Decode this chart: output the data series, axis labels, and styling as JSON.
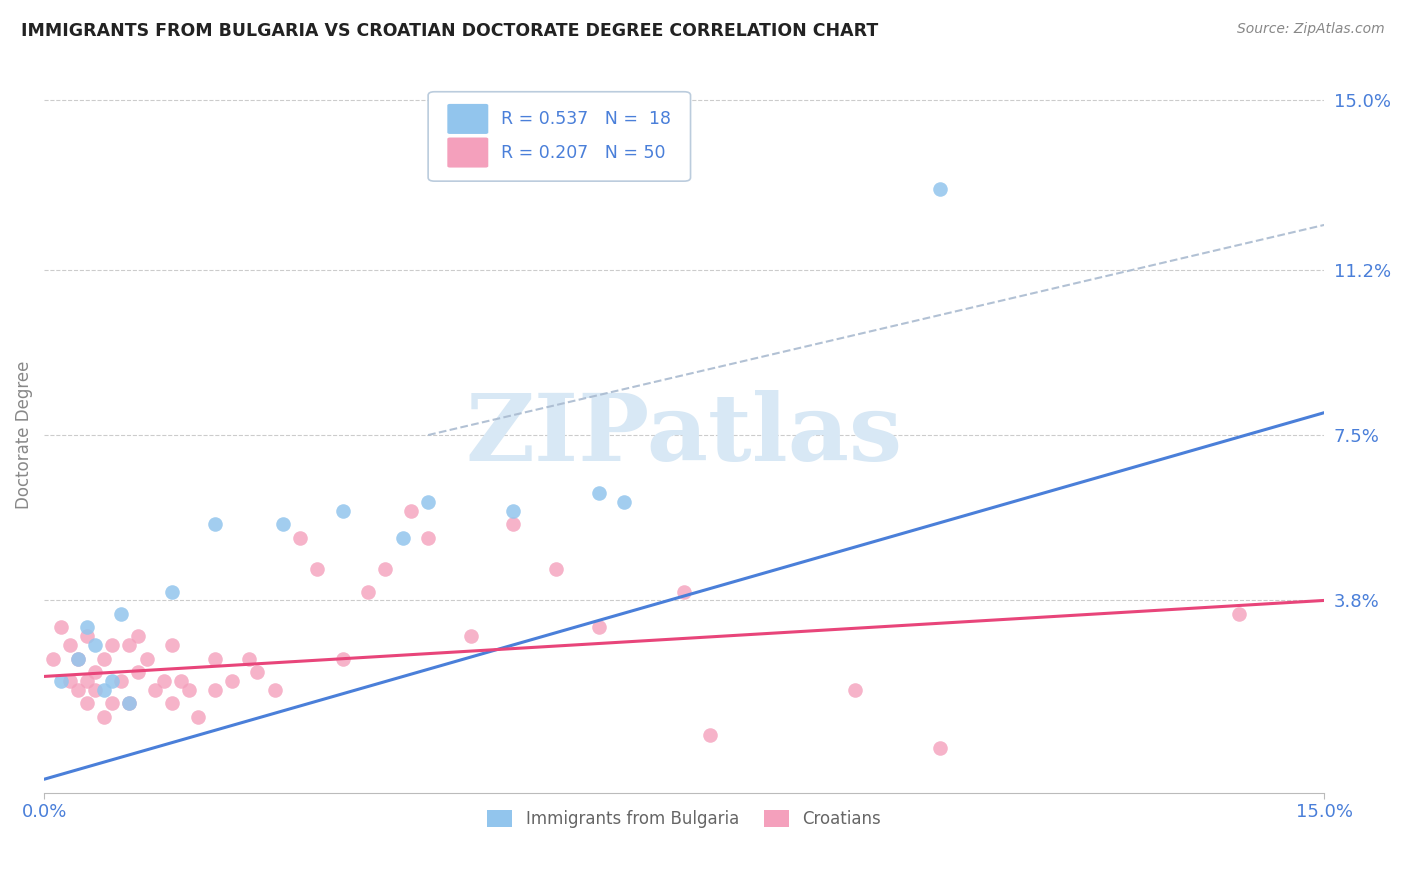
{
  "title": "IMMIGRANTS FROM BULGARIA VS CROATIAN DOCTORATE DEGREE CORRELATION CHART",
  "source": "Source: ZipAtlas.com",
  "ylabel": "Doctorate Degree",
  "ytick_values": [
    3.8,
    7.5,
    11.2,
    15.0
  ],
  "ytick_labels": [
    "3.8%",
    "7.5%",
    "11.2%",
    "15.0%"
  ],
  "xlim": [
    0.0,
    15.0
  ],
  "ylim": [
    -0.5,
    15.5
  ],
  "xmin_label": "0.0%",
  "xmax_label": "15.0%",
  "legend_R_bulgaria": "R = 0.537",
  "legend_N_bulgaria": "N =  18",
  "legend_R_croatian": "R = 0.207",
  "legend_N_croatian": "N = 50",
  "color_bulgaria": "#92C5ED",
  "color_croatian": "#F4A0BC",
  "color_trend_bulgaria_solid": "#4A7FD9",
  "color_trend_dashed": "#AABBD0",
  "color_trend_croatian": "#E8457A",
  "watermark_text": "ZIPatlas",
  "watermark_color": "#D8E8F5",
  "blue_line_x0": 0.0,
  "blue_line_y0": -0.2,
  "blue_line_x1": 15.0,
  "blue_line_y1": 8.0,
  "dash_line_x0": 4.5,
  "dash_line_y0": 7.5,
  "dash_line_x1": 15.0,
  "dash_line_y1": 12.2,
  "pink_line_x0": 0.0,
  "pink_line_y0": 2.1,
  "pink_line_x1": 15.0,
  "pink_line_y1": 3.8,
  "bulgaria_x": [
    0.2,
    0.4,
    0.5,
    0.6,
    0.7,
    0.8,
    0.9,
    1.0,
    1.5,
    2.0,
    2.8,
    3.5,
    4.5,
    5.5,
    6.5,
    6.8,
    10.5,
    4.2
  ],
  "bulgaria_y": [
    2.0,
    2.5,
    3.2,
    2.8,
    1.8,
    2.0,
    3.5,
    1.5,
    4.0,
    5.5,
    5.5,
    5.8,
    6.0,
    5.8,
    6.2,
    6.0,
    13.0,
    5.2
  ],
  "croatian_x": [
    0.1,
    0.2,
    0.3,
    0.3,
    0.4,
    0.4,
    0.5,
    0.5,
    0.5,
    0.6,
    0.6,
    0.7,
    0.7,
    0.8,
    0.8,
    0.9,
    1.0,
    1.0,
    1.1,
    1.1,
    1.2,
    1.3,
    1.4,
    1.5,
    1.5,
    1.6,
    1.7,
    1.8,
    2.0,
    2.0,
    2.2,
    2.4,
    2.5,
    2.7,
    3.0,
    3.2,
    3.5,
    3.8,
    4.0,
    4.3,
    4.5,
    5.0,
    5.5,
    6.0,
    6.5,
    7.5,
    7.8,
    9.5,
    10.5,
    14.0
  ],
  "croatian_y": [
    2.5,
    3.2,
    2.0,
    2.8,
    1.8,
    2.5,
    2.0,
    1.5,
    3.0,
    1.8,
    2.2,
    2.5,
    1.2,
    2.8,
    1.5,
    2.0,
    2.8,
    1.5,
    2.2,
    3.0,
    2.5,
    1.8,
    2.0,
    1.5,
    2.8,
    2.0,
    1.8,
    1.2,
    2.5,
    1.8,
    2.0,
    2.5,
    2.2,
    1.8,
    5.2,
    4.5,
    2.5,
    4.0,
    4.5,
    5.8,
    5.2,
    3.0,
    5.5,
    4.5,
    3.2,
    4.0,
    0.8,
    1.8,
    0.5,
    3.5
  ]
}
